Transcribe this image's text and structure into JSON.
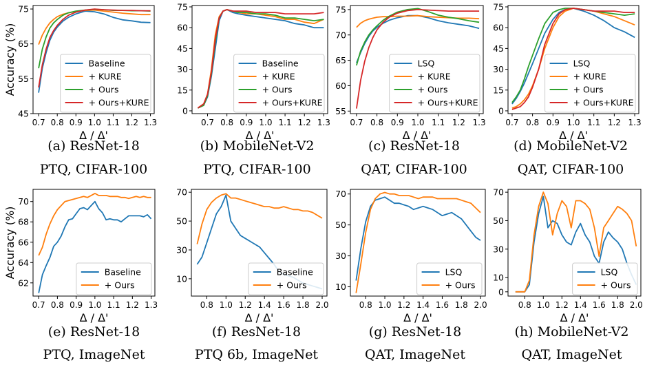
{
  "ylabel": "Accuracy (%)",
  "chart_data": [
    {
      "type": "line",
      "caption": [
        "(a) ResNet-18",
        "PTQ, CIFAR-100"
      ],
      "xlabel": "Δ / Δ'",
      "ylabel": "Accuracy (%)",
      "xlim": [
        0.67,
        1.32
      ],
      "ylim": [
        45,
        76
      ],
      "xticks": [
        0.7,
        0.8,
        0.9,
        1.0,
        1.1,
        1.2,
        1.3
      ],
      "xtick_labels": [
        "0.7",
        "0.8",
        "0.9",
        "1.0",
        "1.1",
        "1.2",
        "1.3"
      ],
      "yticks": [
        45,
        55,
        65,
        75
      ],
      "ytick_labels": [
        "45",
        "55",
        "65",
        "75"
      ],
      "legend_loc": "lower-right",
      "x": [
        0.7,
        0.72,
        0.74,
        0.76,
        0.78,
        0.8,
        0.83,
        0.86,
        0.9,
        0.95,
        1.0,
        1.05,
        1.1,
        1.15,
        1.2,
        1.25,
        1.3
      ],
      "series": [
        {
          "name": "Baseline",
          "color": "#1f77b4",
          "values": [
            51,
            58,
            62.5,
            66,
            68.3,
            69.8,
            71.5,
            72.6,
            73.6,
            74.4,
            74.2,
            73.6,
            72.6,
            71.9,
            71.6,
            71.2,
            71.1
          ]
        },
        {
          "name": "+ KURE",
          "color": "#ff7f0e",
          "values": [
            64.8,
            67.5,
            69.5,
            71,
            72,
            72.8,
            73.5,
            73.9,
            74.3,
            74.6,
            74.7,
            74.4,
            74.1,
            73.8,
            73.6,
            73.4,
            73.4
          ]
        },
        {
          "name": "+ Ours",
          "color": "#2ca02c",
          "values": [
            58,
            63.5,
            67,
            69.5,
            71,
            72,
            73.2,
            73.9,
            74.4,
            74.7,
            74.9,
            74.8,
            74.6,
            74.6,
            74.5,
            74.5,
            74.4
          ]
        },
        {
          "name": "+ Ours+KURE",
          "color": "#d62728",
          "values": [
            52.5,
            59,
            63.5,
            66.8,
            68.8,
            70.3,
            72,
            73.2,
            74.1,
            74.7,
            75,
            74.8,
            74.7,
            74.6,
            74.6,
            74.5,
            74.5
          ]
        }
      ]
    },
    {
      "type": "line",
      "caption": [
        "(b) MobileNet-V2",
        "PTQ, CIFAR-100"
      ],
      "xlabel": "Δ / Δ'",
      "xlim": [
        0.62,
        1.32
      ],
      "ylim": [
        -2,
        76
      ],
      "xticks": [
        0.7,
        0.8,
        0.9,
        1.0,
        1.1,
        1.2,
        1.3
      ],
      "xtick_labels": [
        "0.7",
        "0.8",
        "0.9",
        "1.0",
        "1.1",
        "1.2",
        "1.3"
      ],
      "yticks": [
        0,
        15,
        30,
        45,
        60,
        75
      ],
      "ytick_labels": [
        "0",
        "15",
        "30",
        "45",
        "60",
        "75"
      ],
      "legend_loc": "lower-right",
      "x": [
        0.65,
        0.68,
        0.7,
        0.72,
        0.74,
        0.76,
        0.78,
        0.8,
        0.83,
        0.86,
        0.9,
        0.95,
        1.0,
        1.05,
        1.1,
        1.15,
        1.2,
        1.25,
        1.3
      ],
      "series": [
        {
          "name": "Baseline",
          "color": "#1f77b4",
          "values": [
            2,
            4,
            10,
            25,
            45,
            65,
            72,
            73,
            71,
            70,
            69,
            68,
            67,
            66,
            65,
            63,
            62,
            60,
            60
          ]
        },
        {
          "name": "+ KURE",
          "color": "#ff7f0e",
          "values": [
            2,
            5,
            12,
            30,
            55,
            68,
            72,
            73,
            72,
            71,
            70,
            70,
            69,
            68,
            66,
            66,
            64,
            63,
            66
          ]
        },
        {
          "name": "+ Ours",
          "color": "#2ca02c",
          "values": [
            2,
            4,
            11,
            27,
            50,
            67,
            72,
            73,
            72,
            71,
            71,
            70,
            70,
            69,
            67,
            67,
            66,
            65,
            66
          ]
        },
        {
          "name": "+ Ours+KURE",
          "color": "#d62728",
          "values": [
            2,
            5,
            12,
            28,
            52,
            67,
            72,
            73,
            72,
            72,
            72,
            71,
            71,
            71,
            70,
            70,
            70,
            70,
            71
          ]
        }
      ]
    },
    {
      "type": "line",
      "caption": [
        "(c) ResNet-18",
        "QAT, CIFAR-100"
      ],
      "xlabel": "Δ / Δ'",
      "xlim": [
        0.67,
        1.32
      ],
      "ylim": [
        54.5,
        75.8
      ],
      "xticks": [
        0.7,
        0.8,
        0.9,
        1.0,
        1.1,
        1.2,
        1.3
      ],
      "xtick_labels": [
        "0.7",
        "0.8",
        "0.9",
        "1.0",
        "1.1",
        "1.2",
        "1.3"
      ],
      "yticks": [
        55,
        60,
        65,
        70,
        75
      ],
      "ytick_labels": [
        "55",
        "60",
        "65",
        "70",
        "75"
      ],
      "legend_loc": "lower-right",
      "x": [
        0.7,
        0.72,
        0.74,
        0.76,
        0.78,
        0.8,
        0.83,
        0.86,
        0.9,
        0.95,
        1.0,
        1.05,
        1.1,
        1.15,
        1.2,
        1.25,
        1.3
      ],
      "series": [
        {
          "name": "LSQ",
          "color": "#1f77b4",
          "values": [
            64.5,
            66.5,
            68.3,
            69.7,
            70.8,
            71.5,
            72.3,
            72.9,
            73.4,
            73.8,
            73.8,
            73.4,
            72.8,
            72.4,
            72.1,
            71.8,
            71.3
          ]
        },
        {
          "name": "+ KURE",
          "color": "#ff7f0e",
          "values": [
            71.5,
            72.3,
            72.8,
            73.1,
            73.3,
            73.5,
            73.6,
            73.6,
            73.7,
            73.7,
            73.8,
            73.6,
            73.5,
            73.4,
            73.3,
            73.3,
            73.2
          ]
        },
        {
          "name": "+ Ours",
          "color": "#2ca02c",
          "values": [
            64,
            66.8,
            68.6,
            70,
            71,
            71.8,
            72.9,
            73.7,
            74.5,
            75,
            75.2,
            74.6,
            73.9,
            73.5,
            73.2,
            72.8,
            72.5
          ]
        },
        {
          "name": "+ Ours+KURE",
          "color": "#d62728",
          "values": [
            55.5,
            61,
            64.8,
            67.5,
            69.5,
            71,
            72.5,
            73.5,
            74.3,
            74.8,
            75,
            74.9,
            74.8,
            74.7,
            74.7,
            74.7,
            74.7
          ]
        }
      ]
    },
    {
      "type": "line",
      "caption": [
        "(d) MobileNet-V2",
        "QAT, CIFAR-100"
      ],
      "xlabel": "Δ / Δ'",
      "xlim": [
        0.68,
        1.32
      ],
      "ylim": [
        -2,
        76
      ],
      "xticks": [
        0.7,
        0.8,
        0.9,
        1.0,
        1.1,
        1.2,
        1.3
      ],
      "xtick_labels": [
        "0.7",
        "0.8",
        "0.9",
        "1.0",
        "1.1",
        "1.2",
        "1.3"
      ],
      "yticks": [
        0,
        15,
        30,
        45,
        60,
        75
      ],
      "ytick_labels": [
        "0",
        "15",
        "30",
        "45",
        "60",
        "75"
      ],
      "legend_loc": "lower-right",
      "x": [
        0.7,
        0.72,
        0.74,
        0.76,
        0.78,
        0.8,
        0.83,
        0.86,
        0.9,
        0.93,
        0.96,
        1.0,
        1.05,
        1.1,
        1.15,
        1.2,
        1.25,
        1.3
      ],
      "series": [
        {
          "name": "LSQ",
          "color": "#1f77b4",
          "values": [
            5,
            9,
            14,
            20,
            27,
            34,
            45,
            56,
            66,
            71,
            73,
            74,
            72,
            69,
            65,
            60,
            57,
            53
          ]
        },
        {
          "name": "+ KURE",
          "color": "#ff7f0e",
          "values": [
            2,
            3,
            5,
            8,
            12,
            18,
            30,
            45,
            60,
            68,
            72,
            74,
            73,
            72,
            70,
            68,
            65,
            62
          ]
        },
        {
          "name": "+ Ours",
          "color": "#2ca02c",
          "values": [
            6,
            10,
            15,
            23,
            32,
            40,
            52,
            63,
            71,
            73,
            74,
            74,
            73,
            72,
            71,
            70,
            69,
            70
          ]
        },
        {
          "name": "+ Ours+KURE",
          "color": "#d62728",
          "values": [
            1,
            2,
            3,
            6,
            10,
            17,
            30,
            48,
            63,
            70,
            73,
            74,
            73,
            72,
            72,
            72,
            71,
            71
          ]
        }
      ]
    },
    {
      "type": "line",
      "caption": [
        "(e) ResNet-18",
        "PTQ, ImageNet"
      ],
      "xlabel": "Δ / Δ'",
      "ylabel": "Accuracy (%)",
      "xlim": [
        0.67,
        1.32
      ],
      "ylim": [
        60.7,
        71.2
      ],
      "xticks": [
        0.7,
        0.8,
        0.9,
        1.0,
        1.1,
        1.2,
        1.3
      ],
      "xtick_labels": [
        "0.7",
        "0.8",
        "0.9",
        "1.0",
        "1.1",
        "1.2",
        "1.3"
      ],
      "yticks": [
        62,
        64,
        66,
        68,
        70
      ],
      "ytick_labels": [
        "62",
        "64",
        "66",
        "68",
        "70"
      ],
      "legend_loc": "lower-right",
      "x": [
        0.7,
        0.72,
        0.74,
        0.76,
        0.78,
        0.8,
        0.82,
        0.84,
        0.86,
        0.88,
        0.9,
        0.92,
        0.94,
        0.96,
        0.98,
        1.0,
        1.02,
        1.04,
        1.06,
        1.08,
        1.1,
        1.12,
        1.14,
        1.16,
        1.18,
        1.2,
        1.22,
        1.24,
        1.26,
        1.28,
        1.3
      ],
      "series": [
        {
          "name": "Baseline",
          "color": "#1f77b4",
          "values": [
            61,
            62.8,
            63.7,
            64.5,
            65.6,
            66,
            66.6,
            67.5,
            68.2,
            68.3,
            68.8,
            69.3,
            69.4,
            69.2,
            69.6,
            70,
            69.3,
            68.9,
            68.2,
            68.3,
            68.2,
            68.2,
            68,
            68.3,
            68.6,
            68.6,
            68.6,
            68.6,
            68.5,
            68.7,
            68.3
          ]
        },
        {
          "name": "+ Ours",
          "color": "#ff7f0e",
          "values": [
            64.7,
            65.5,
            66.8,
            67.8,
            68.6,
            69.2,
            69.6,
            70,
            70.1,
            70.2,
            70.3,
            70.4,
            70.5,
            70.4,
            70.6,
            70.8,
            70.6,
            70.6,
            70.6,
            70.5,
            70.5,
            70.5,
            70.4,
            70.4,
            70.3,
            70.4,
            70.5,
            70.4,
            70.5,
            70.4,
            70.4
          ]
        }
      ]
    },
    {
      "type": "line",
      "caption": [
        "(f) ResNet-18",
        "PTQ 6b, ImageNet"
      ],
      "xlabel": "Δ / Δ'",
      "xlim": [
        0.64,
        2.05
      ],
      "ylim": [
        -2,
        72
      ],
      "xticks": [
        0.8,
        1.0,
        1.2,
        1.4,
        1.6,
        1.8,
        2.0
      ],
      "xtick_labels": [
        "0.8",
        "1.0",
        "1.2",
        "1.4",
        "1.6",
        "1.8",
        "2.0"
      ],
      "yticks": [
        10,
        30,
        50,
        70
      ],
      "ytick_labels": [
        "10",
        "30",
        "50",
        "70"
      ],
      "legend_loc": "lower-right",
      "x": [
        0.7,
        0.75,
        0.8,
        0.85,
        0.9,
        0.95,
        1.0,
        1.05,
        1.1,
        1.15,
        1.2,
        1.25,
        1.3,
        1.35,
        1.4,
        1.45,
        1.5,
        1.55,
        1.6,
        1.65,
        1.7,
        1.75,
        1.8,
        1.85,
        1.9,
        1.95,
        2.0
      ],
      "series": [
        {
          "name": "Baseline",
          "color": "#1f77b4",
          "values": [
            20,
            25,
            35,
            45,
            55,
            60,
            68,
            50,
            45,
            40,
            38,
            36,
            34,
            32,
            28,
            24,
            20,
            15,
            13,
            12,
            11,
            9,
            7,
            6,
            5,
            4,
            3
          ]
        },
        {
          "name": "+ Ours",
          "color": "#ff7f0e",
          "values": [
            34,
            48,
            58,
            63,
            66,
            68,
            69,
            66,
            66,
            65,
            64,
            63,
            62,
            61,
            60,
            60,
            59,
            59,
            60,
            59,
            58,
            58,
            57,
            57,
            56,
            54,
            52
          ]
        }
      ]
    },
    {
      "type": "line",
      "caption": [
        "(g) ResNet-18",
        "QAT, ImageNet"
      ],
      "xlabel": "Δ / Δ'",
      "xlim": [
        0.64,
        2.05
      ],
      "ylim": [
        4,
        73
      ],
      "xticks": [
        0.8,
        1.0,
        1.2,
        1.4,
        1.6,
        1.8,
        2.0
      ],
      "xtick_labels": [
        "0.8",
        "1.0",
        "1.2",
        "1.4",
        "1.6",
        "1.8",
        "2.0"
      ],
      "yticks": [
        10,
        30,
        50,
        70
      ],
      "ytick_labels": [
        "10",
        "30",
        "50",
        "70"
      ],
      "legend_loc": "lower-right",
      "x": [
        0.7,
        0.75,
        0.8,
        0.85,
        0.9,
        0.95,
        1.0,
        1.05,
        1.1,
        1.15,
        1.2,
        1.25,
        1.3,
        1.35,
        1.4,
        1.45,
        1.5,
        1.55,
        1.6,
        1.65,
        1.7,
        1.75,
        1.8,
        1.85,
        1.9,
        1.95,
        2.0
      ],
      "series": [
        {
          "name": "LSQ",
          "color": "#1f77b4",
          "values": [
            14,
            35,
            52,
            62,
            66,
            67,
            68,
            66,
            64,
            64,
            63,
            62,
            60,
            61,
            62,
            61,
            60,
            58,
            56,
            57,
            58,
            56,
            54,
            50,
            46,
            42,
            40
          ]
        },
        {
          "name": "+ Ours",
          "color": "#ff7f0e",
          "values": [
            6,
            25,
            45,
            60,
            67,
            70,
            71,
            70,
            70,
            69,
            69,
            69,
            68,
            67,
            68,
            68,
            68,
            67,
            67,
            67,
            67,
            67,
            66,
            65,
            64,
            61,
            58
          ]
        }
      ]
    },
    {
      "type": "line",
      "caption": [
        "(h) MobileNet-V2",
        "QAT, ImageNet"
      ],
      "xlabel": "Δ / Δ'",
      "xlim": [
        0.62,
        2.05
      ],
      "ylim": [
        -3,
        72
      ],
      "xticks": [
        0.8,
        1.0,
        1.2,
        1.4,
        1.6,
        1.8,
        2.0
      ],
      "xtick_labels": [
        "0.8",
        "1.0",
        "1.2",
        "1.4",
        "1.6",
        "1.8",
        "2.0"
      ],
      "yticks": [
        0,
        10,
        30,
        50,
        70
      ],
      "ytick_labels": [
        "0",
        "10",
        "30",
        "50",
        "70"
      ],
      "legend_loc": "lower-right",
      "x": [
        0.7,
        0.75,
        0.8,
        0.85,
        0.9,
        0.95,
        1.0,
        1.05,
        1.1,
        1.15,
        1.2,
        1.25,
        1.3,
        1.35,
        1.4,
        1.45,
        1.5,
        1.55,
        1.6,
        1.65,
        1.7,
        1.75,
        1.8,
        1.85,
        1.9,
        1.95,
        2.0
      ],
      "series": [
        {
          "name": "LSQ",
          "color": "#1f77b4",
          "values": [
            0,
            0,
            0,
            5,
            35,
            55,
            67,
            45,
            50,
            48,
            40,
            35,
            33,
            42,
            48,
            40,
            35,
            25,
            20,
            35,
            42,
            38,
            35,
            30,
            20,
            12,
            5
          ]
        },
        {
          "name": "+ Ours",
          "color": "#ff7f0e",
          "values": [
            0,
            0,
            0,
            8,
            40,
            60,
            70,
            62,
            40,
            55,
            64,
            60,
            45,
            64,
            64,
            62,
            58,
            45,
            25,
            45,
            50,
            55,
            60,
            58,
            55,
            50,
            32
          ]
        }
      ]
    }
  ]
}
